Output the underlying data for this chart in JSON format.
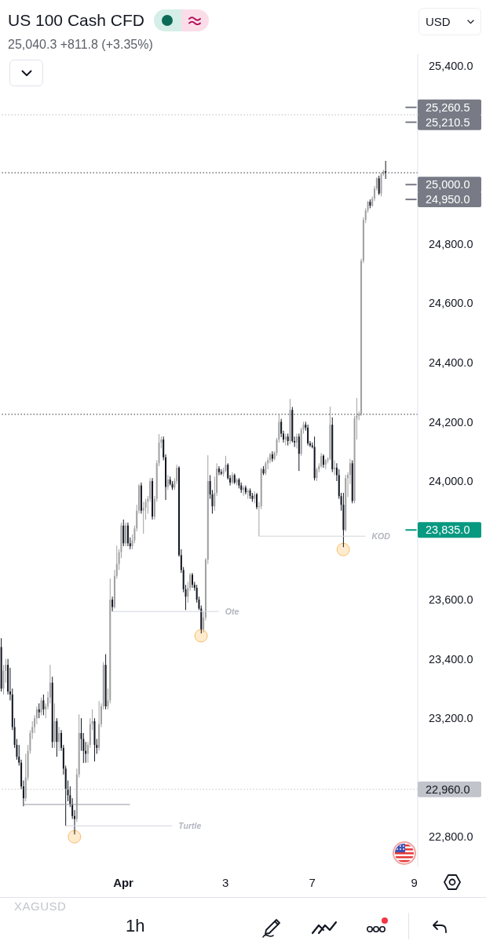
{
  "chart_data": {
    "type": "candlestick",
    "title": "US 100 Cash CFD",
    "subtitle": "25,040.3 +811.8 (+3.35%)",
    "categories": [
      null,
      null,
      null,
      null,
      null,
      null,
      null,
      null,
      null,
      null,
      null,
      null,
      null,
      null,
      null,
      null,
      null,
      null,
      null,
      null,
      null,
      null,
      null,
      null,
      null,
      null,
      null,
      null,
      null,
      null,
      null,
      null,
      null,
      null,
      null,
      null,
      null,
      null,
      null,
      null,
      null,
      null,
      null,
      null,
      null,
      null,
      null,
      null,
      null,
      null,
      null,
      null,
      null,
      null,
      null,
      "Apr",
      null,
      null,
      null,
      null,
      null,
      null,
      null,
      null,
      null,
      null,
      null,
      null,
      null,
      null,
      null,
      null,
      null,
      null,
      null,
      null,
      null,
      null,
      null,
      null,
      null,
      null,
      null,
      null,
      null,
      null,
      null,
      null,
      null,
      null,
      null,
      null,
      null,
      null,
      null,
      null,
      null,
      null,
      null,
      null,
      null,
      "3",
      null,
      null,
      null,
      null,
      null,
      null,
      null,
      null,
      null,
      null,
      null,
      null,
      null,
      null,
      null,
      null,
      null,
      null,
      null,
      null,
      null,
      null,
      null,
      null,
      null,
      null,
      null,
      null,
      null,
      null,
      null,
      null,
      null,
      null,
      null,
      null,
      null,
      null,
      "7",
      null,
      null,
      null,
      null,
      null,
      null,
      null,
      null,
      null,
      null,
      null,
      null,
      null,
      null,
      null,
      null,
      null,
      null,
      null,
      null,
      null,
      null,
      null,
      null,
      null,
      null,
      null,
      null,
      null,
      null,
      null,
      null,
      null,
      null,
      null,
      null,
      null,
      null,
      null,
      null,
      null,
      null,
      null,
      null,
      null,
      "9",
      null
    ],
    "ohlc": [
      [
        23440,
        23470,
        23290,
        23300
      ],
      [
        23300,
        23380,
        23280,
        23360
      ],
      [
        23360,
        23400,
        23320,
        23380
      ],
      [
        23380,
        23400,
        23280,
        23290
      ],
      [
        23290,
        23370,
        23260,
        23280
      ],
      [
        23280,
        23300,
        23160,
        23170
      ],
      [
        23170,
        23200,
        23100,
        23110
      ],
      [
        23110,
        23130,
        23060,
        23070
      ],
      [
        23070,
        23110,
        23040,
        23050
      ],
      [
        23050,
        23060,
        22960,
        22970
      ],
      [
        22970,
        22990,
        22903,
        22930
      ],
      [
        22930,
        23080,
        22920,
        23000
      ],
      [
        23000,
        23110,
        22990,
        23090
      ],
      [
        23090,
        23160,
        23080,
        23150
      ],
      [
        23150,
        23190,
        23130,
        23170
      ],
      [
        23170,
        23210,
        23150,
        23200
      ],
      [
        23200,
        23240,
        23180,
        23230
      ],
      [
        23230,
        23250,
        23200,
        23220
      ],
      [
        23220,
        23270,
        23210,
        23260
      ],
      [
        23260,
        23280,
        23210,
        23230
      ],
      [
        23230,
        23250,
        23200,
        23240
      ],
      [
        23240,
        23290,
        23230,
        23270
      ],
      [
        23270,
        23380,
        23250,
        23320
      ],
      [
        23320,
        23340,
        23100,
        23120
      ],
      [
        23120,
        23250,
        23100,
        23190
      ],
      [
        23190,
        23200,
        23070,
        23120
      ],
      [
        23120,
        23170,
        23090,
        23150
      ],
      [
        23150,
        23160,
        23090,
        23100
      ],
      [
        23100,
        23110,
        23010,
        23030
      ],
      [
        23030,
        23040,
        22837,
        22960
      ],
      [
        22960,
        22990,
        22920,
        22940
      ],
      [
        22940,
        22970,
        22900,
        22910
      ],
      [
        22910,
        22930,
        22860,
        22870
      ],
      [
        22870,
        22890,
        22808,
        22860
      ],
      [
        22860,
        23030,
        22850,
        23010
      ],
      [
        23010,
        23213,
        23000,
        23150
      ],
      [
        23150,
        23200,
        23090,
        23130
      ],
      [
        23130,
        23150,
        23049,
        23090
      ],
      [
        23090,
        23120,
        23050,
        23080
      ],
      [
        23080,
        23120,
        23050,
        23110
      ],
      [
        23110,
        23200,
        23100,
        23180
      ],
      [
        23180,
        23230,
        23160,
        23190
      ],
      [
        23190,
        23200,
        23054,
        23110
      ],
      [
        23110,
        23130,
        23080,
        23100
      ],
      [
        23100,
        23258,
        23090,
        23180
      ],
      [
        23180,
        23250,
        23170,
        23240
      ],
      [
        23240,
        23390,
        23230,
        23380
      ],
      [
        23380,
        23416,
        23230,
        23240
      ],
      [
        23240,
        23300,
        23230,
        23260
      ],
      [
        23260,
        23671,
        23250,
        23600
      ],
      [
        23600,
        23610,
        23560,
        23575
      ],
      [
        23575,
        23700,
        23570,
        23680
      ],
      [
        23680,
        23782,
        23670,
        23720
      ],
      [
        23720,
        23770,
        23700,
        23760
      ],
      [
        23760,
        23860,
        23740,
        23850
      ],
      [
        23850,
        23870,
        23780,
        23790
      ],
      [
        23790,
        23860,
        23780,
        23850
      ],
      [
        23850,
        23860,
        23780,
        23790
      ],
      [
        23790,
        23810,
        23770,
        23780
      ],
      [
        23780,
        23820,
        23770,
        23800
      ],
      [
        23800,
        23850,
        23790,
        23840
      ],
      [
        23840,
        23920,
        23830,
        23900
      ],
      [
        23900,
        23990,
        23890,
        23985
      ],
      [
        23985,
        23995,
        23890,
        23900
      ],
      [
        23900,
        23930,
        23822,
        23910
      ],
      [
        23910,
        23940,
        23870,
        23930
      ],
      [
        23930,
        23950,
        23890,
        23940
      ],
      [
        23940,
        24010,
        23930,
        24000
      ],
      [
        24000,
        24010,
        23870,
        23880
      ],
      [
        23880,
        23950,
        23870,
        23940
      ],
      [
        23940,
        24070,
        23930,
        24060
      ],
      [
        24060,
        24158,
        24050,
        24130
      ],
      [
        24130,
        24150,
        24110,
        24140
      ],
      [
        24140,
        24150,
        24070,
        24080
      ],
      [
        24080,
        24090,
        23936,
        23980
      ],
      [
        23980,
        24020,
        23970,
        24005
      ],
      [
        24005,
        24015,
        23985,
        23990
      ],
      [
        23990,
        24000,
        23970,
        23978
      ],
      [
        23978,
        24010,
        23970,
        24000
      ],
      [
        24000,
        24055,
        23990,
        24045
      ],
      [
        24045,
        24050,
        23745,
        23750
      ],
      [
        23750,
        23770,
        23690,
        23700
      ],
      [
        23700,
        23710,
        23625,
        23635
      ],
      [
        23635,
        23650,
        23565,
        23610
      ],
      [
        23610,
        23660,
        23590,
        23640
      ],
      [
        23640,
        23690,
        23630,
        23684
      ],
      [
        23684,
        23690,
        23640,
        23650
      ],
      [
        23650,
        23660,
        23630,
        23640
      ],
      [
        23640,
        23650,
        23590,
        23600
      ],
      [
        23600,
        23610,
        23565,
        23570
      ],
      [
        23570,
        23580,
        23486,
        23500
      ],
      [
        23500,
        23560,
        23490,
        23540
      ],
      [
        23540,
        23740,
        23530,
        23735
      ],
      [
        23735,
        24087,
        23720,
        24000
      ],
      [
        24000,
        24020,
        23940,
        23955
      ],
      [
        23955,
        23970,
        23890,
        23915
      ],
      [
        23915,
        24015,
        23900,
        23960
      ],
      [
        23960,
        24060,
        23950,
        24042
      ],
      [
        24042,
        24050,
        24020,
        24030
      ],
      [
        24030,
        24040,
        24020,
        24025
      ],
      [
        24025,
        24045,
        24015,
        24035
      ],
      [
        24035,
        24085,
        24030,
        24055
      ],
      [
        24055,
        24060,
        24005,
        24010
      ],
      [
        24010,
        24020,
        23985,
        23995
      ],
      [
        23995,
        24030,
        23990,
        24020
      ],
      [
        24020,
        24025,
        23990,
        23995
      ],
      [
        23995,
        24010,
        23985,
        24005
      ],
      [
        24005,
        24010,
        23975,
        23985
      ],
      [
        23985,
        23995,
        23960,
        23970
      ],
      [
        23970,
        23985,
        23950,
        23978
      ],
      [
        23978,
        23985,
        23955,
        23962
      ],
      [
        23962,
        23975,
        23940,
        23968
      ],
      [
        23968,
        23975,
        23940,
        23950
      ],
      [
        23950,
        23960,
        23930,
        23940
      ],
      [
        23940,
        23965,
        23925,
        23955
      ],
      [
        23955,
        23960,
        23905,
        23912
      ],
      [
        23912,
        23930,
        23814,
        23915
      ],
      [
        23915,
        24045,
        23905,
        24040
      ],
      [
        24040,
        24050,
        24020,
        24026
      ],
      [
        24026,
        24066,
        24020,
        24060
      ],
      [
        24060,
        24080,
        24040,
        24070
      ],
      [
        24070,
        24095,
        24060,
        24090
      ],
      [
        24090,
        24100,
        24065,
        24075
      ],
      [
        24075,
        24100,
        24070,
        24095
      ],
      [
        24095,
        24145,
        24085,
        24140
      ],
      [
        24140,
        24224,
        24130,
        24200
      ],
      [
        24200,
        24210,
        24148,
        24160
      ],
      [
        24160,
        24170,
        24130,
        24140
      ],
      [
        24140,
        24160,
        24120,
        24150
      ],
      [
        24150,
        24160,
        24120,
        24135
      ],
      [
        24135,
        24277,
        24125,
        24240
      ],
      [
        24240,
        24250,
        24130,
        24135
      ],
      [
        24135,
        24150,
        24115,
        24130
      ],
      [
        24130,
        24160,
        24110,
        24150
      ],
      [
        24150,
        24160,
        24034,
        24092
      ],
      [
        24092,
        24180,
        24085,
        24174
      ],
      [
        24174,
        24200,
        24160,
        24190
      ],
      [
        24190,
        24200,
        24170,
        24180
      ],
      [
        24180,
        24190,
        24120,
        24127
      ],
      [
        24127,
        24135,
        24115,
        24120
      ],
      [
        24120,
        24130,
        24110,
        24115
      ],
      [
        24115,
        24150,
        24002,
        24010
      ],
      [
        24010,
        24045,
        24000,
        24040
      ],
      [
        24040,
        24060,
        24030,
        24050
      ],
      [
        24050,
        24095,
        24045,
        24085
      ],
      [
        24085,
        24090,
        24045,
        24055
      ],
      [
        24055,
        24075,
        24040,
        24070
      ],
      [
        24070,
        24080,
        24060,
        24075
      ],
      [
        24075,
        24251,
        24070,
        24190
      ],
      [
        24190,
        24215,
        24030,
        24040
      ],
      [
        24040,
        24070,
        24020,
        24045
      ],
      [
        24045,
        24060,
        24000,
        24020
      ],
      [
        24020,
        24040,
        23940,
        23949
      ],
      [
        23949,
        23960,
        23900,
        23920
      ],
      [
        23920,
        23960,
        23777,
        23835
      ],
      [
        23835,
        24021,
        23830,
        24010
      ],
      [
        24010,
        24030,
        23946,
        24021
      ],
      [
        24021,
        24075,
        23990,
        24060
      ],
      [
        24060,
        24070,
        23925,
        23933
      ],
      [
        23933,
        24220,
        23925,
        24211
      ],
      [
        24211,
        24280,
        24140,
        24220
      ],
      [
        24220,
        24235,
        24205,
        24227
      ],
      [
        24227,
        24750,
        24220,
        24743
      ],
      [
        24743,
        24890,
        24735,
        24881
      ],
      [
        24881,
        24920,
        24870,
        24913
      ],
      [
        24913,
        24945,
        24905,
        24942
      ],
      [
        24942,
        24950,
        24920,
        24929
      ],
      [
        24929,
        24960,
        24925,
        24953
      ],
      [
        24953,
        24995,
        24945,
        24987
      ],
      [
        24987,
        25025,
        24980,
        25021
      ],
      [
        25021,
        25030,
        24965,
        24970
      ],
      [
        24970,
        25040,
        24960,
        25035
      ],
      [
        25035,
        25050,
        25030,
        25045
      ],
      [
        25045,
        25080,
        25019,
        25040
      ],
      null,
      null,
      null,
      null,
      null,
      null,
      null,
      null,
      null,
      null,
      null,
      null,
      null,
      null
    ],
    "colors": [
      "#131722",
      "#a0a0a0",
      "#a0a0a0",
      "#131722",
      "#131722",
      "#131722",
      "#131722",
      "#131722",
      "#131722",
      "#131722",
      "#131722",
      "#a0a0a0",
      "#a0a0a0",
      "#a0a0a0",
      "#a0a0a0",
      "#a0a0a0",
      "#a0a0a0",
      "#131722",
      "#a0a0a0",
      "#131722",
      "#a0a0a0",
      "#a0a0a0",
      "#a0a0a0",
      "#131722",
      "#a0a0a0",
      "#131722",
      "#a0a0a0",
      "#131722",
      "#131722",
      "#131722",
      "#131722",
      "#131722",
      "#131722",
      "#131722",
      "#a0a0a0",
      "#a0a0a0",
      "#131722",
      "#131722",
      "#131722",
      "#a0a0a0",
      "#a0a0a0",
      "#a0a0a0",
      "#131722",
      "#131722",
      "#a0a0a0",
      "#a0a0a0",
      "#a0a0a0",
      "#131722",
      "#a0a0a0",
      "#a0a0a0",
      "#131722",
      "#a0a0a0",
      "#a0a0a0",
      "#a0a0a0",
      "#a0a0a0",
      "#131722",
      "#a0a0a0",
      "#131722",
      "#131722",
      "#a0a0a0",
      "#a0a0a0",
      "#a0a0a0",
      "#a0a0a0",
      "#131722",
      "#a0a0a0",
      "#a0a0a0",
      "#a0a0a0",
      "#a0a0a0",
      "#131722",
      "#a0a0a0",
      "#a0a0a0",
      "#a0a0a0",
      "#a0a0a0",
      "#131722",
      "#131722",
      "#a0a0a0",
      "#131722",
      "#131722",
      "#a0a0a0",
      "#a0a0a0",
      "#131722",
      "#131722",
      "#131722",
      "#131722",
      "#a0a0a0",
      "#a0a0a0",
      "#131722",
      "#131722",
      "#131722",
      "#131722",
      "#131722",
      "#a0a0a0",
      "#a0a0a0",
      "#a0a0a0",
      "#131722",
      "#131722",
      "#a0a0a0",
      "#a0a0a0",
      "#131722",
      "#131722",
      "#a0a0a0",
      "#a0a0a0",
      "#131722",
      "#131722",
      "#a0a0a0",
      "#131722",
      "#a0a0a0",
      "#131722",
      "#131722",
      "#a0a0a0",
      "#131722",
      "#a0a0a0",
      "#131722",
      "#131722",
      "#a0a0a0",
      "#131722",
      "#a0a0a0",
      "#a0a0a0",
      "#131722",
      "#a0a0a0",
      "#a0a0a0",
      "#a0a0a0",
      "#131722",
      "#a0a0a0",
      "#a0a0a0",
      "#a0a0a0",
      "#131722",
      "#131722",
      "#a0a0a0",
      "#131722",
      "#a0a0a0",
      "#131722",
      "#131722",
      "#a0a0a0",
      "#131722",
      "#a0a0a0",
      "#a0a0a0",
      "#131722",
      "#131722",
      "#131722",
      "#131722",
      "#131722",
      "#a0a0a0",
      "#a0a0a0",
      "#a0a0a0",
      "#131722",
      "#a0a0a0",
      "#a0a0a0",
      "#a0a0a0",
      "#131722",
      "#a0a0a0",
      "#131722",
      "#131722",
      "#131722",
      "#131722",
      "#a0a0a0",
      "#a0a0a0",
      "#a0a0a0",
      "#131722",
      "#a0a0a0",
      "#a0a0a0",
      "#a0a0a0",
      "#a0a0a0",
      "#a0a0a0",
      "#a0a0a0",
      "#a0a0a0",
      "#131722",
      "#a0a0a0",
      "#a0a0a0",
      "#a0a0a0",
      "#131722",
      "#a0a0a0",
      "#a0a0a0",
      "#131722",
      null,
      null,
      null,
      null,
      null,
      null,
      null,
      null,
      null,
      null,
      null,
      null,
      null,
      null
    ],
    "ylim": [
      22700,
      25440
    ],
    "yticks": [
      {
        "value": 22800,
        "label": "22,800.0"
      },
      {
        "value": 23200,
        "label": "23,200.0"
      },
      {
        "value": 23400,
        "label": "23,400.0"
      },
      {
        "value": 23600,
        "label": "23,600.0"
      },
      {
        "value": 24000,
        "label": "24,000.0"
      },
      {
        "value": 24200,
        "label": "24,200.0"
      },
      {
        "value": 24400,
        "label": "24,400.0"
      },
      {
        "value": 24600,
        "label": "24,600.0"
      },
      {
        "value": 24800,
        "label": "24,800.0"
      },
      {
        "value": 25400,
        "label": "25,400.0"
      }
    ],
    "ref_lines": [
      {
        "axis": "y",
        "value": 25260.5,
        "label": "25,260.5",
        "color": "#787b86"
      },
      {
        "axis": "y",
        "value": 25235.5,
        "line_style": "dotted",
        "color": "#b8bbc4"
      },
      {
        "axis": "y",
        "value": 25210.5,
        "label": "25,210.5",
        "color": "#787b86"
      },
      {
        "axis": "y",
        "value": 25040,
        "line_style": "dotted",
        "color": "#2a2e39"
      },
      {
        "axis": "y",
        "value": 25000,
        "label": "25,000.0",
        "color": "#787b86"
      },
      {
        "axis": "y",
        "value": 24950,
        "label": "24,950.0",
        "color": "#787b86"
      },
      {
        "axis": "y",
        "value": 24225,
        "line_style": "dotted",
        "color": "#2a2e39"
      },
      {
        "axis": "y",
        "value": 23835,
        "label": "23,835.0",
        "color": "#089981"
      },
      {
        "axis": "y",
        "value": 23814,
        "label": "KOD",
        "line_style": "solid",
        "color": "#d1d4dc"
      },
      {
        "axis": "y",
        "value": 23560,
        "label": "Ote",
        "line_style": "solid",
        "color": "#d1d4dc"
      },
      {
        "axis": "y",
        "value": 22960,
        "label": "22,960.0",
        "line_style": "dotted",
        "color": "#c2c4cb"
      },
      {
        "axis": "y",
        "value": 22909,
        "line_style": "solid",
        "color": "#9598a1"
      },
      {
        "axis": "y",
        "value": 22837,
        "label": "Turtle",
        "line_style": "solid",
        "color": "#d1d4dc"
      }
    ],
    "annotations": [
      "USD",
      "XAGUSD",
      "1h"
    ]
  }
}
